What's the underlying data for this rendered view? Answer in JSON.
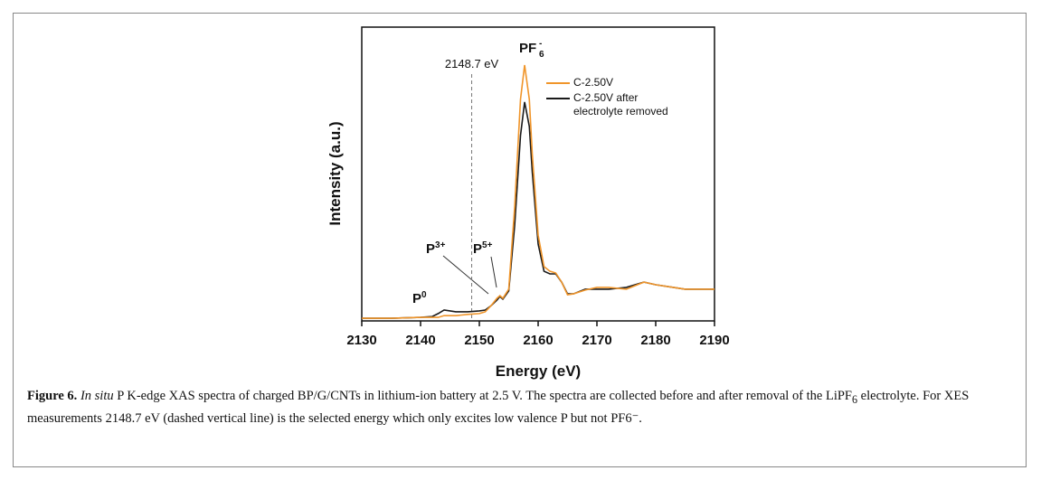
{
  "chart_data": {
    "type": "line",
    "xlabel": "Energy (eV)",
    "ylabel": "Intensity (a.u.)",
    "x": [
      2130,
      2135,
      2140,
      2142,
      2143,
      2144,
      2145,
      2146,
      2148,
      2150,
      2151,
      2152,
      2153,
      2153.5,
      2154,
      2155,
      2156,
      2157,
      2157.7,
      2158.5,
      2159,
      2160,
      2161,
      2162,
      2163,
      2164,
      2165,
      2166,
      2168,
      2170,
      2172,
      2175,
      2178,
      2180,
      2183,
      2185,
      2190
    ],
    "series": [
      {
        "name": "C-2.50V",
        "color": "#f0952a",
        "values": [
          0.009,
          0.009,
          0.012,
          0.012,
          0.012,
          0.018,
          0.018,
          0.018,
          0.022,
          0.025,
          0.031,
          0.052,
          0.077,
          0.086,
          0.077,
          0.108,
          0.385,
          0.754,
          0.871,
          0.754,
          0.569,
          0.292,
          0.185,
          0.169,
          0.163,
          0.132,
          0.089,
          0.092,
          0.105,
          0.114,
          0.114,
          0.108,
          0.132,
          0.123,
          0.114,
          0.108,
          0.108
        ]
      },
      {
        "name": "C-2.50V after electrolyte removed",
        "color": "#1a1a1a",
        "values": [
          0.009,
          0.009,
          0.012,
          0.015,
          0.025,
          0.037,
          0.034,
          0.031,
          0.031,
          0.034,
          0.037,
          0.052,
          0.071,
          0.083,
          0.074,
          0.102,
          0.323,
          0.631,
          0.745,
          0.662,
          0.508,
          0.262,
          0.169,
          0.16,
          0.16,
          0.132,
          0.092,
          0.092,
          0.108,
          0.108,
          0.108,
          0.114,
          0.132,
          0.123,
          0.114,
          0.108,
          0.108
        ]
      }
    ],
    "xlim": [
      2130,
      2190
    ],
    "xticks": [
      2130,
      2140,
      2150,
      2160,
      2170,
      2180,
      2190
    ],
    "ylim": [
      0,
      1
    ],
    "vline": {
      "x": 2148.7,
      "label": "2148.7 eV"
    },
    "annotations": [
      {
        "base": "PF",
        "sub": "6",
        "sup": "-"
      },
      {
        "base": "P",
        "sup": "3+"
      },
      {
        "base": "P",
        "sup": "5+"
      },
      {
        "base": "P",
        "sup": "0"
      }
    ]
  },
  "caption": {
    "label": "Figure 6.",
    "italic": "In situ",
    "text1": " P K-edge XAS spectra of charged BP/G/CNTs in lithium-ion battery at 2.5 V. The spectra are collected before and after removal of the LiPF",
    "sub": "6",
    "text2": " electrolyte. For XES measurements 2148.7 eV (dashed vertical line) is the selected energy which only excites low valence P but not PF6⁻."
  }
}
